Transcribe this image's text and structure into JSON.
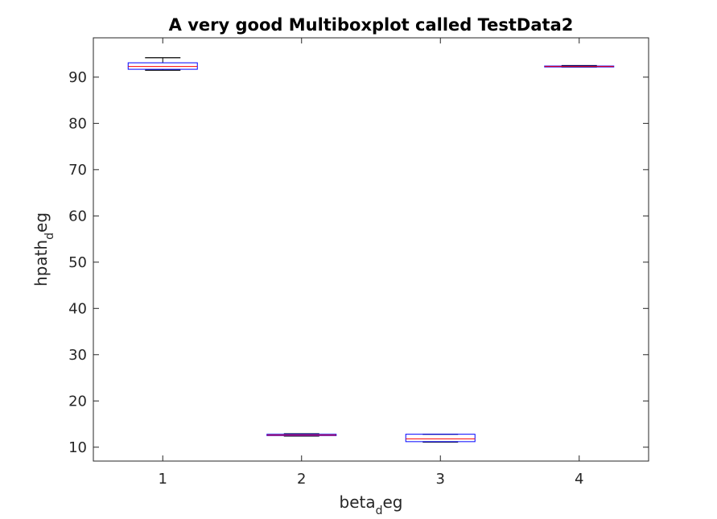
{
  "chart_data": {
    "type": "boxplot",
    "title": "A very good Multiboxplot called TestData2",
    "xlabel": {
      "base": "beta",
      "subscript": "d",
      "tail": "eg"
    },
    "ylabel": {
      "base": "hpath",
      "subscript": "d",
      "tail": "eg"
    },
    "categories": [
      "1",
      "2",
      "3",
      "4"
    ],
    "xlim": [
      0.5,
      4.5
    ],
    "ylim": [
      7,
      98.5
    ],
    "yticks": [
      10,
      20,
      30,
      40,
      50,
      60,
      70,
      80,
      90
    ],
    "grid": false,
    "boxes": [
      {
        "category": "1",
        "whisker_low": 91.5,
        "q1": 91.7,
        "median": 92.3,
        "q3": 93.1,
        "whisker_high": 94.2
      },
      {
        "category": "2",
        "whisker_low": 12.4,
        "q1": 12.5,
        "median": 12.6,
        "q3": 12.8,
        "whisker_high": 12.9
      },
      {
        "category": "3",
        "whisker_low": 11.1,
        "q1": 11.2,
        "median": 11.8,
        "q3": 12.8,
        "whisker_high": 12.8
      },
      {
        "category": "4",
        "whisker_low": 92.2,
        "q1": 92.2,
        "median": 92.3,
        "q3": 92.4,
        "whisker_high": 92.5
      }
    ],
    "colors": {
      "box": "#0000ff",
      "median": "#ff0000",
      "whisker": "#000000",
      "axis": "#262626"
    }
  }
}
